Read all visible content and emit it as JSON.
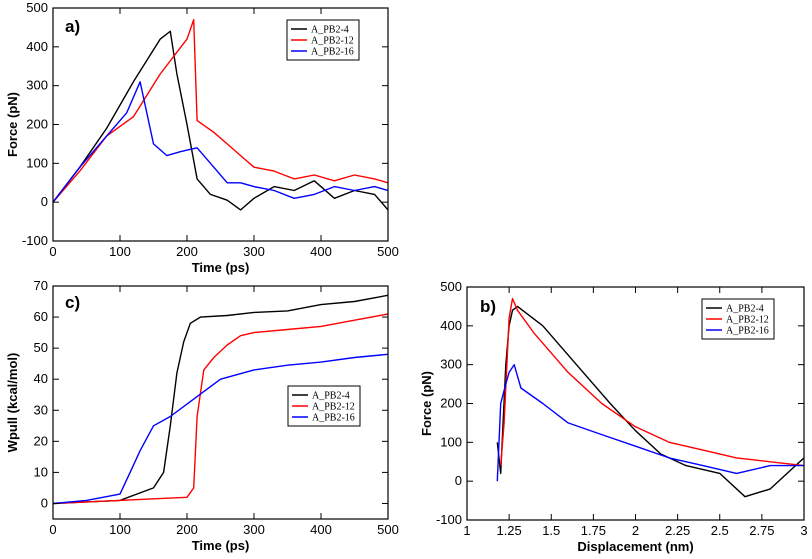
{
  "chart_data": [
    {
      "id": "a",
      "type": "line",
      "panel_label": "a)",
      "xlabel": "Time (ps)",
      "ylabel": "Force (pN)",
      "xlim": [
        0,
        500
      ],
      "ylim": [
        -100,
        500
      ],
      "xticks": [
        0,
        100,
        200,
        300,
        400,
        500
      ],
      "yticks": [
        -100,
        0,
        100,
        200,
        300,
        400,
        500
      ],
      "legend_position": "top-right",
      "series": [
        {
          "name": "A_PB2-4",
          "color": "#000000",
          "x": [
            0,
            40,
            80,
            120,
            160,
            175,
            185,
            200,
            215,
            235,
            260,
            280,
            300,
            330,
            360,
            390,
            420,
            450,
            480,
            500
          ],
          "y": [
            0,
            90,
            190,
            310,
            420,
            440,
            330,
            200,
            60,
            20,
            5,
            -20,
            10,
            40,
            30,
            55,
            10,
            30,
            20,
            -20
          ]
        },
        {
          "name": "A_PB2-12",
          "color": "#ff0000",
          "x": [
            0,
            40,
            80,
            120,
            160,
            200,
            210,
            215,
            240,
            260,
            280,
            300,
            330,
            360,
            390,
            420,
            450,
            480,
            500
          ],
          "y": [
            0,
            80,
            170,
            220,
            330,
            420,
            470,
            210,
            180,
            150,
            120,
            90,
            80,
            60,
            70,
            55,
            70,
            60,
            50
          ]
        },
        {
          "name": "A_PB2-16",
          "color": "#0000ff",
          "x": [
            0,
            40,
            80,
            110,
            130,
            150,
            170,
            190,
            215,
            240,
            260,
            280,
            300,
            330,
            360,
            390,
            420,
            450,
            480,
            500
          ],
          "y": [
            0,
            90,
            170,
            230,
            310,
            150,
            120,
            130,
            140,
            90,
            50,
            50,
            40,
            30,
            10,
            20,
            40,
            30,
            40,
            30
          ]
        }
      ]
    },
    {
      "id": "c",
      "type": "line",
      "panel_label": "c)",
      "xlabel": "Time (ps)",
      "ylabel": "Wpull (kcal/mol)",
      "xlim": [
        0,
        500
      ],
      "ylim": [
        -5,
        70
      ],
      "xticks": [
        0,
        100,
        200,
        300,
        400,
        500
      ],
      "yticks": [
        0,
        10,
        20,
        30,
        40,
        50,
        60,
        70
      ],
      "legend_position": "right",
      "series": [
        {
          "name": "A_PB2-4",
          "color": "#000000",
          "x": [
            0,
            50,
            100,
            150,
            165,
            175,
            185,
            195,
            205,
            220,
            260,
            300,
            350,
            400,
            450,
            500
          ],
          "y": [
            0,
            0.5,
            1,
            5,
            10,
            25,
            42,
            52,
            58,
            60,
            60.5,
            61.5,
            62,
            64,
            65,
            67
          ]
        },
        {
          "name": "A_PB2-12",
          "color": "#ff0000",
          "x": [
            0,
            50,
            100,
            150,
            200,
            210,
            215,
            225,
            240,
            260,
            280,
            300,
            350,
            400,
            450,
            500
          ],
          "y": [
            0,
            0.5,
            1,
            1.5,
            2,
            5,
            28,
            43,
            47,
            51,
            54,
            55,
            56,
            57,
            59,
            61
          ]
        },
        {
          "name": "A_PB2-16",
          "color": "#0000ff",
          "x": [
            0,
            50,
            100,
            115,
            130,
            150,
            175,
            200,
            225,
            250,
            300,
            350,
            400,
            450,
            500
          ],
          "y": [
            0,
            1,
            3,
            10,
            17,
            25,
            28,
            32,
            36,
            40,
            43,
            44.5,
            45.5,
            47,
            48
          ]
        }
      ]
    },
    {
      "id": "b",
      "type": "line",
      "panel_label": "b)",
      "xlabel": "Displacement (nm)",
      "ylabel": "Force (pN)",
      "xlim": [
        1,
        3
      ],
      "ylim": [
        -100,
        500
      ],
      "xticks": [
        1,
        1.25,
        1.5,
        1.75,
        2,
        2.25,
        2.5,
        2.75,
        3
      ],
      "xtick_labels": [
        "1",
        "1.25",
        "1.5",
        "1.75",
        "2",
        "2.25",
        "2.5",
        "2.75",
        "3"
      ],
      "yticks": [
        -100,
        0,
        100,
        200,
        300,
        400,
        500
      ],
      "legend_position": "top-right",
      "series": [
        {
          "name": "A_PB2-4",
          "color": "#000000",
          "x": [
            1.18,
            1.2,
            1.23,
            1.25,
            1.27,
            1.3,
            1.45,
            1.65,
            1.85,
            2.0,
            2.15,
            2.3,
            2.5,
            2.65,
            2.8,
            2.9,
            3.0
          ],
          "y": [
            100,
            20,
            300,
            400,
            440,
            450,
            400,
            300,
            200,
            130,
            70,
            40,
            20,
            -40,
            -20,
            20,
            60
          ]
        },
        {
          "name": "A_PB2-12",
          "color": "#ff0000",
          "x": [
            1.2,
            1.22,
            1.25,
            1.27,
            1.3,
            1.4,
            1.6,
            1.8,
            2.0,
            2.2,
            2.4,
            2.6,
            2.8,
            3.0
          ],
          "y": [
            40,
            150,
            420,
            470,
            440,
            380,
            280,
            200,
            140,
            100,
            80,
            60,
            50,
            40
          ]
        },
        {
          "name": "A_PB2-16",
          "color": "#0000ff",
          "x": [
            1.18,
            1.2,
            1.23,
            1.25,
            1.28,
            1.32,
            1.45,
            1.6,
            1.8,
            2.0,
            2.2,
            2.4,
            2.6,
            2.8,
            3.0
          ],
          "y": [
            0,
            200,
            250,
            280,
            300,
            240,
            200,
            150,
            120,
            90,
            60,
            40,
            20,
            40,
            40
          ]
        }
      ]
    }
  ]
}
